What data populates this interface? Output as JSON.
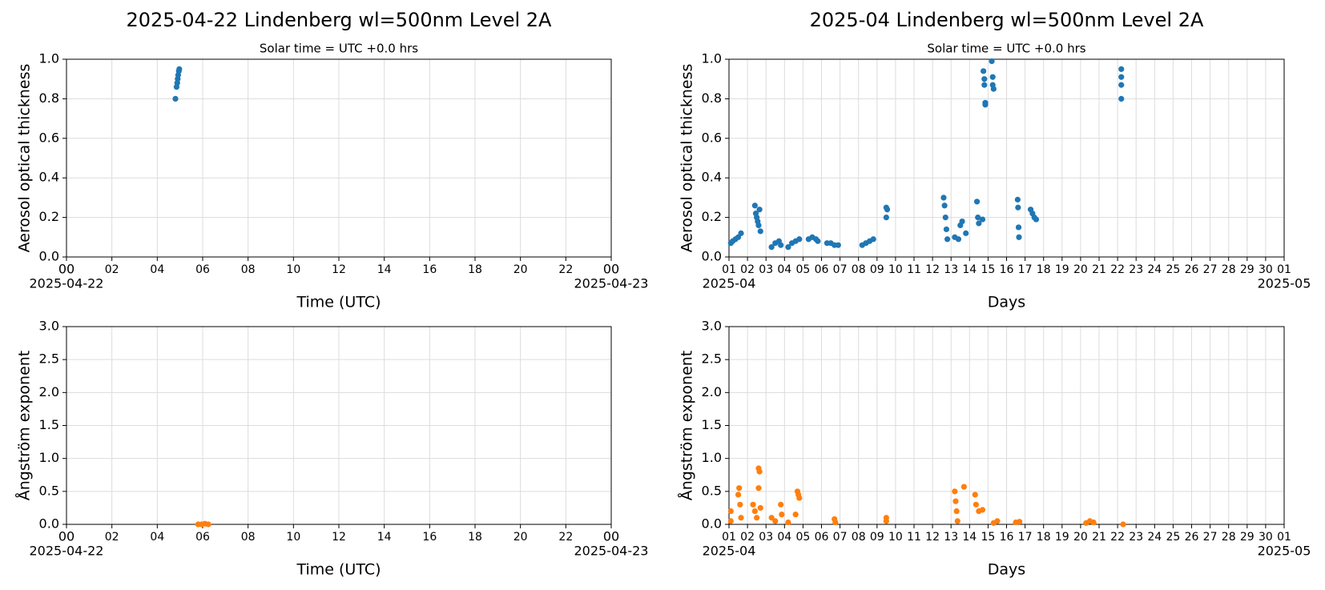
{
  "chart_data": [
    {
      "type": "scatter",
      "title": "2025-04-22  Lindenberg  wl=500nm  Level 2A",
      "subtitle": "Solar time = UTC +0.0 hrs",
      "ylabel": "Aerosol optical thickness",
      "xlabel": "Time (UTC)",
      "color": "#1f77b4",
      "grid": true,
      "x": [
        4.8,
        4.85,
        4.88,
        4.9,
        4.92,
        4.95,
        4.97
      ],
      "values": [
        0.8,
        0.86,
        0.88,
        0.9,
        0.92,
        0.94,
        0.95
      ],
      "xlim": [
        0,
        24
      ],
      "ylim": [
        0,
        1
      ],
      "xticks": [
        {
          "value": 0,
          "label": "00"
        },
        {
          "value": 2,
          "label": "02"
        },
        {
          "value": 4,
          "label": "04"
        },
        {
          "value": 6,
          "label": "06"
        },
        {
          "value": 8,
          "label": "08"
        },
        10,
        12,
        14,
        16,
        18,
        20,
        22,
        {
          "value": 24,
          "label": "00"
        }
      ],
      "date_labels": [
        {
          "value": 0,
          "label": "2025-04-22"
        },
        {
          "value": 24,
          "label": "2025-04-23"
        }
      ],
      "yticks": [
        {
          "value": 0,
          "label": "0.0"
        },
        0.2,
        0.4,
        0.6,
        0.8,
        {
          "value": 1,
          "label": "1.0"
        }
      ]
    },
    {
      "type": "scatter",
      "title": "2025-04  Lindenberg  wl=500nm  Level 2A",
      "subtitle": "Solar time = UTC +0.0 hrs",
      "ylabel": "Aerosol optical thickness",
      "xlabel": "Days",
      "color": "#1f77b4",
      "grid": true,
      "x": [
        1.1,
        1.2,
        1.35,
        1.5,
        1.65,
        2.4,
        2.45,
        2.5,
        2.55,
        2.6,
        2.65,
        2.7,
        3.3,
        3.5,
        3.7,
        3.8,
        4.2,
        4.4,
        4.6,
        4.8,
        5.3,
        5.5,
        5.7,
        5.8,
        6.3,
        6.5,
        6.7,
        6.9,
        8.2,
        8.4,
        8.6,
        8.8,
        9.5,
        9.5,
        9.55,
        12.6,
        12.65,
        12.7,
        12.75,
        12.8,
        13.2,
        13.4,
        13.5,
        13.6,
        13.8,
        14.4,
        14.45,
        14.5,
        14.7,
        14.75,
        14.8,
        14.8,
        14.85,
        14.85,
        15.2,
        15.25,
        15.25,
        15.3,
        16.6,
        16.62,
        16.65,
        16.67,
        17.3,
        17.4,
        17.5,
        17.6,
        22.2,
        22.2,
        22.2,
        22.2
      ],
      "values": [
        0.07,
        0.08,
        0.09,
        0.1,
        0.12,
        0.26,
        0.22,
        0.2,
        0.18,
        0.16,
        0.24,
        0.13,
        0.05,
        0.07,
        0.08,
        0.06,
        0.05,
        0.07,
        0.08,
        0.09,
        0.09,
        0.1,
        0.09,
        0.08,
        0.07,
        0.07,
        0.06,
        0.06,
        0.06,
        0.07,
        0.08,
        0.09,
        0.25,
        0.2,
        0.24,
        0.3,
        0.26,
        0.2,
        0.14,
        0.09,
        0.1,
        0.09,
        0.16,
        0.18,
        0.12,
        0.28,
        0.2,
        0.17,
        0.19,
        0.94,
        0.9,
        0.87,
        0.78,
        0.77,
        0.99,
        0.91,
        0.87,
        0.85,
        0.29,
        0.25,
        0.15,
        0.1,
        0.24,
        0.22,
        0.2,
        0.19,
        0.95,
        0.91,
        0.87,
        0.8
      ],
      "xlim": [
        1,
        31
      ],
      "ylim": [
        0,
        1
      ],
      "xticks": [
        {
          "value": 1,
          "label": "01"
        },
        {
          "value": 2,
          "label": "02"
        },
        {
          "value": 3,
          "label": "03"
        },
        {
          "value": 4,
          "label": "04"
        },
        {
          "value": 5,
          "label": "05"
        },
        {
          "value": 6,
          "label": "06"
        },
        {
          "value": 7,
          "label": "07"
        },
        {
          "value": 8,
          "label": "08"
        },
        {
          "value": 9,
          "label": "09"
        },
        10,
        11,
        12,
        13,
        14,
        15,
        16,
        17,
        18,
        19,
        20,
        21,
        22,
        23,
        24,
        25,
        26,
        27,
        28,
        29,
        30,
        {
          "value": 31,
          "label": "01"
        }
      ],
      "date_labels": [
        {
          "value": 1,
          "label": "2025-04"
        },
        {
          "value": 31,
          "label": "2025-05"
        }
      ],
      "yticks": [
        {
          "value": 0,
          "label": "0.0"
        },
        0.2,
        0.4,
        0.6,
        0.8,
        {
          "value": 1,
          "label": "1.0"
        }
      ]
    },
    {
      "type": "scatter",
      "ylabel": "Ångström exponent",
      "xlabel": "Time (UTC)",
      "color": "#ff7f0e",
      "grid": true,
      "x": [
        5.8,
        5.95,
        6.1,
        6.25
      ],
      "values": [
        0.0,
        0.0,
        0.01,
        0.0
      ],
      "xlim": [
        0,
        24
      ],
      "ylim": [
        0,
        3
      ],
      "xticks": [
        {
          "value": 0,
          "label": "00"
        },
        {
          "value": 2,
          "label": "02"
        },
        {
          "value": 4,
          "label": "04"
        },
        {
          "value": 6,
          "label": "06"
        },
        {
          "value": 8,
          "label": "08"
        },
        10,
        12,
        14,
        16,
        18,
        20,
        22,
        {
          "value": 24,
          "label": "00"
        }
      ],
      "date_labels": [
        {
          "value": 0,
          "label": "2025-04-22"
        },
        {
          "value": 24,
          "label": "2025-04-23"
        }
      ],
      "yticks": [
        {
          "value": 0,
          "label": "0.0"
        },
        0.5,
        {
          "value": 1,
          "label": "1.0"
        },
        1.5,
        {
          "value": 2,
          "label": "2.0"
        },
        2.5,
        {
          "value": 3,
          "label": "3.0"
        }
      ]
    },
    {
      "type": "scatter",
      "ylabel": "Ångström exponent",
      "xlabel": "Days",
      "color": "#ff7f0e",
      "grid": true,
      "x": [
        1.1,
        1.1,
        1.5,
        1.55,
        1.6,
        1.65,
        2.3,
        2.4,
        2.5,
        2.6,
        2.65,
        2.6,
        2.7,
        3.3,
        3.5,
        3.8,
        3.85,
        4.2,
        4.6,
        4.7,
        4.75,
        4.8,
        6.7,
        6.75,
        9.5,
        9.5,
        13.2,
        13.25,
        13.3,
        13.35,
        13.7,
        14.3,
        14.35,
        14.5,
        14.7,
        15.3,
        15.5,
        16.5,
        16.7,
        20.3,
        20.5,
        20.7,
        22.3
      ],
      "values": [
        0.2,
        0.05,
        0.45,
        0.55,
        0.3,
        0.1,
        0.3,
        0.2,
        0.1,
        0.85,
        0.8,
        0.55,
        0.25,
        0.1,
        0.05,
        0.3,
        0.15,
        0.03,
        0.15,
        0.5,
        0.45,
        0.4,
        0.08,
        0.03,
        0.1,
        0.05,
        0.5,
        0.35,
        0.2,
        0.05,
        0.57,
        0.45,
        0.3,
        0.2,
        0.22,
        0.02,
        0.05,
        0.03,
        0.04,
        0.02,
        0.05,
        0.03,
        0.0
      ],
      "xlim": [
        1,
        31
      ],
      "ylim": [
        0,
        3
      ],
      "xticks": [
        {
          "value": 1,
          "label": "01"
        },
        {
          "value": 2,
          "label": "02"
        },
        {
          "value": 3,
          "label": "03"
        },
        {
          "value": 4,
          "label": "04"
        },
        {
          "value": 5,
          "label": "05"
        },
        {
          "value": 6,
          "label": "06"
        },
        {
          "value": 7,
          "label": "07"
        },
        {
          "value": 8,
          "label": "08"
        },
        {
          "value": 9,
          "label": "09"
        },
        10,
        11,
        12,
        13,
        14,
        15,
        16,
        17,
        18,
        19,
        20,
        21,
        22,
        23,
        24,
        25,
        26,
        27,
        28,
        29,
        30,
        {
          "value": 31,
          "label": "01"
        }
      ],
      "date_labels": [
        {
          "value": 1,
          "label": "2025-04"
        },
        {
          "value": 31,
          "label": "2025-05"
        }
      ],
      "yticks": [
        {
          "value": 0,
          "label": "0.0"
        },
        0.5,
        {
          "value": 1,
          "label": "1.0"
        },
        1.5,
        {
          "value": 2,
          "label": "2.0"
        },
        2.5,
        {
          "value": 3,
          "label": "3.0"
        }
      ]
    }
  ]
}
